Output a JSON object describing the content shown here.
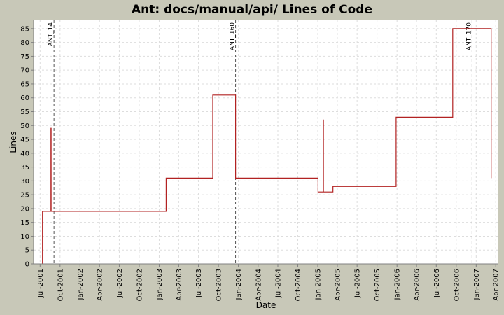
{
  "chart_data": {
    "type": "line",
    "title": "Ant: docs/manual/api/ Lines of Code",
    "xlabel": "Date",
    "ylabel": "Lines",
    "ylim": [
      0,
      88
    ],
    "xlim": [
      "2001-06-01",
      "2007-04-10"
    ],
    "y_ticks": [
      0,
      5,
      10,
      15,
      20,
      25,
      30,
      35,
      40,
      45,
      50,
      55,
      60,
      65,
      70,
      75,
      80,
      85
    ],
    "x_ticks": [
      {
        "label": "Jul-2001",
        "date": "2001-07-01"
      },
      {
        "label": "Oct-2001",
        "date": "2001-10-01"
      },
      {
        "label": "Jan-2002",
        "date": "2002-01-01"
      },
      {
        "label": "Apr-2002",
        "date": "2002-04-01"
      },
      {
        "label": "Jul-2002",
        "date": "2002-07-01"
      },
      {
        "label": "Oct-2002",
        "date": "2002-10-01"
      },
      {
        "label": "Jan-2003",
        "date": "2003-01-01"
      },
      {
        "label": "Apr-2003",
        "date": "2003-04-01"
      },
      {
        "label": "Jul-2003",
        "date": "2003-07-01"
      },
      {
        "label": "Oct-2003",
        "date": "2003-10-01"
      },
      {
        "label": "Jan-2004",
        "date": "2004-01-01"
      },
      {
        "label": "Apr-2004",
        "date": "2004-04-01"
      },
      {
        "label": "Jul-2004",
        "date": "2004-07-01"
      },
      {
        "label": "Oct-2004",
        "date": "2004-10-01"
      },
      {
        "label": "Jan-2005",
        "date": "2005-01-01"
      },
      {
        "label": "Apr-2005",
        "date": "2005-04-01"
      },
      {
        "label": "Jul-2005",
        "date": "2005-07-01"
      },
      {
        "label": "Oct-2005",
        "date": "2005-10-01"
      },
      {
        "label": "Jan-2006",
        "date": "2006-01-01"
      },
      {
        "label": "Apr-2006",
        "date": "2006-04-01"
      },
      {
        "label": "Jul-2006",
        "date": "2006-07-01"
      },
      {
        "label": "Oct-2006",
        "date": "2006-10-01"
      },
      {
        "label": "Jan-2007",
        "date": "2007-01-01"
      },
      {
        "label": "Apr-2007",
        "date": "2007-04-01"
      }
    ],
    "markers": [
      {
        "label": "ANT_14",
        "date": "2001-09-03"
      },
      {
        "label": "ANT_160",
        "date": "2003-12-19"
      },
      {
        "label": "ANT_170",
        "date": "2006-12-13"
      }
    ],
    "series": [
      {
        "color": "#b22222",
        "points": [
          {
            "date": "2001-07-12",
            "value": 0
          },
          {
            "date": "2001-07-12",
            "value": 19
          },
          {
            "date": "2001-08-20",
            "value": 19
          },
          {
            "date": "2001-08-20",
            "value": 49
          },
          {
            "date": "2001-08-21",
            "value": 49
          },
          {
            "date": "2001-08-21",
            "value": 19
          },
          {
            "date": "2003-02-02",
            "value": 19
          },
          {
            "date": "2003-02-02",
            "value": 31
          },
          {
            "date": "2003-09-05",
            "value": 31
          },
          {
            "date": "2003-09-05",
            "value": 61
          },
          {
            "date": "2003-12-19",
            "value": 61
          },
          {
            "date": "2003-12-19",
            "value": 31
          },
          {
            "date": "2005-01-02",
            "value": 31
          },
          {
            "date": "2005-01-02",
            "value": 26
          },
          {
            "date": "2005-01-26",
            "value": 26
          },
          {
            "date": "2005-01-26",
            "value": 52
          },
          {
            "date": "2005-01-27",
            "value": 52
          },
          {
            "date": "2005-01-27",
            "value": 26
          },
          {
            "date": "2005-03-12",
            "value": 26
          },
          {
            "date": "2005-03-12",
            "value": 28
          },
          {
            "date": "2005-12-28",
            "value": 28
          },
          {
            "date": "2005-12-28",
            "value": 53
          },
          {
            "date": "2006-09-15",
            "value": 53
          },
          {
            "date": "2006-09-15",
            "value": 85
          },
          {
            "date": "2007-03-11",
            "value": 85
          },
          {
            "date": "2007-03-11",
            "value": 31
          }
        ]
      }
    ],
    "grid": true,
    "background": "#ffffff",
    "frame_background": "#c8c8b8"
  }
}
